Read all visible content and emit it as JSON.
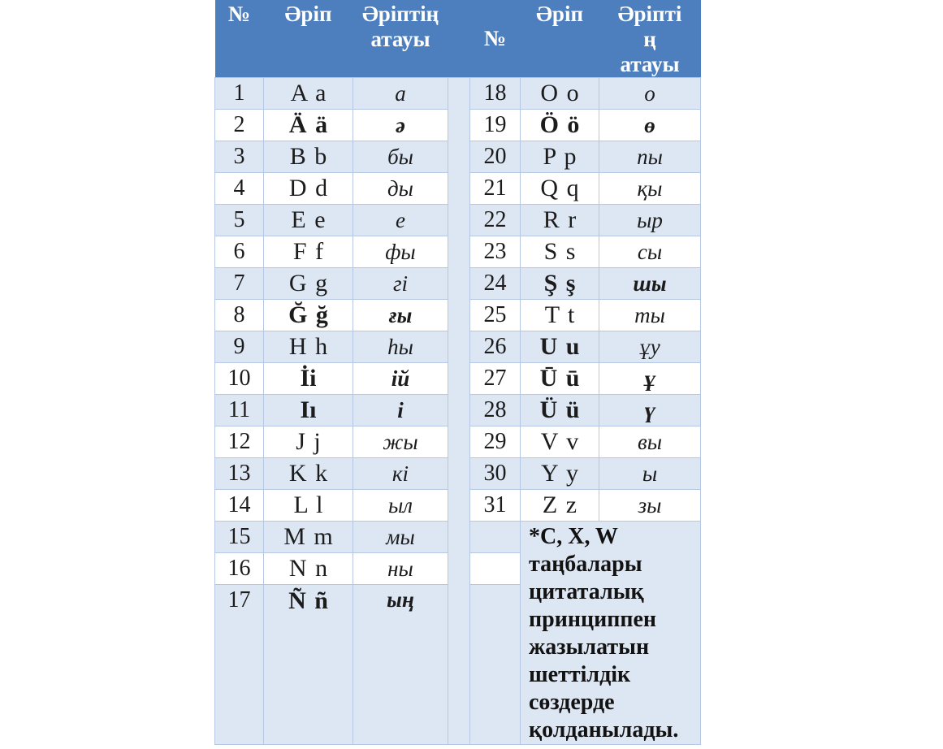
{
  "colors": {
    "header_bg": "#4d7fbe",
    "header_text": "#ffffff",
    "row_shaded": "#dde6f3",
    "row_plain": "#ffffff",
    "border": "#b5c7e2",
    "body_text": "#1c1c1c"
  },
  "header": {
    "left": {
      "no": "№",
      "letter": "Әріп",
      "name_lines": [
        "Әріптің",
        "атауы"
      ]
    },
    "right": {
      "no": "№",
      "letter": "Әріп",
      "name_lines": [
        "Әріпті",
        "ң",
        "атауы"
      ]
    }
  },
  "rows_left": [
    {
      "no": "1",
      "letters": "A a",
      "name": "а",
      "letter_bold": false,
      "name_bold": false
    },
    {
      "no": "2",
      "letters": "Ä ä",
      "name": "ә",
      "letter_bold": true,
      "name_bold": true
    },
    {
      "no": "3",
      "letters": "B b",
      "name": "бы",
      "letter_bold": false,
      "name_bold": false
    },
    {
      "no": "4",
      "letters": "D d",
      "name": "ды",
      "letter_bold": false,
      "name_bold": false
    },
    {
      "no": "5",
      "letters": "E e",
      "name": "е",
      "letter_bold": false,
      "name_bold": false
    },
    {
      "no": "6",
      "letters": "F f",
      "name": "фы",
      "letter_bold": false,
      "name_bold": false
    },
    {
      "no": "7",
      "letters": "G g",
      "name": "гі",
      "letter_bold": false,
      "name_bold": false
    },
    {
      "no": "8",
      "letters": "Ğ ğ",
      "name": "ғы",
      "letter_bold": true,
      "name_bold": true
    },
    {
      "no": "9",
      "letters": "H h",
      "name": "һы",
      "letter_bold": false,
      "name_bold": false
    },
    {
      "no": "10",
      "letters": "İi",
      "name": "ій",
      "letter_bold": true,
      "name_bold": true
    },
    {
      "no": "11",
      "letters": "Iı",
      "name": "і",
      "letter_bold": true,
      "name_bold": true
    },
    {
      "no": "12",
      "letters": "J j",
      "name": "жы",
      "letter_bold": false,
      "name_bold": false
    },
    {
      "no": "13",
      "letters": "K k",
      "name": "кі",
      "letter_bold": false,
      "name_bold": false
    },
    {
      "no": "14",
      "letters": "L l",
      "name": "ыл",
      "letter_bold": false,
      "name_bold": false
    },
    {
      "no": "15",
      "letters": "M m",
      "name": "мы",
      "letter_bold": false,
      "name_bold": false
    },
    {
      "no": "16",
      "letters": "N n",
      "name": "ны",
      "letter_bold": false,
      "name_bold": false
    },
    {
      "no": "17",
      "letters": "Ñ ñ",
      "name": "ың",
      "letter_bold": true,
      "name_bold": true
    }
  ],
  "rows_right": [
    {
      "no": "18",
      "letters": "O o",
      "name": "о",
      "letter_bold": false,
      "name_bold": false
    },
    {
      "no": "19",
      "letters": "Ö ö",
      "name": "ө",
      "letter_bold": true,
      "name_bold": true
    },
    {
      "no": "20",
      "letters": "P p",
      "name": "пы",
      "letter_bold": false,
      "name_bold": false
    },
    {
      "no": "21",
      "letters": "Q q",
      "name": "қы",
      "letter_bold": false,
      "name_bold": false
    },
    {
      "no": "22",
      "letters": "R r",
      "name": "ыр",
      "letter_bold": false,
      "name_bold": false
    },
    {
      "no": "23",
      "letters": "S s",
      "name": "сы",
      "letter_bold": false,
      "name_bold": false
    },
    {
      "no": "24",
      "letters": "Ş ş",
      "name": "шы",
      "letter_bold": true,
      "name_bold": true
    },
    {
      "no": "25",
      "letters": "T t",
      "name": "ты",
      "letter_bold": false,
      "name_bold": false
    },
    {
      "no": "26",
      "letters": "U u",
      "name": "ұу",
      "letter_bold": true,
      "name_bold": false
    },
    {
      "no": "27",
      "letters": "Ū ū",
      "name": "ұ",
      "letter_bold": true,
      "name_bold": true
    },
    {
      "no": "28",
      "letters": "Ü ü",
      "name": "ү",
      "letter_bold": true,
      "name_bold": true
    },
    {
      "no": "29",
      "letters": "V v",
      "name": "вы",
      "letter_bold": false,
      "name_bold": false
    },
    {
      "no": "30",
      "letters": "Y y",
      "name": "ы",
      "letter_bold": false,
      "name_bold": false
    },
    {
      "no": "31",
      "letters": "Z z",
      "name": "зы",
      "letter_bold": false,
      "name_bold": false
    }
  ],
  "note": "*C, X, W таңбалары цитаталық принциппен жазылатын шеттілдік сөздерде қолданылады."
}
